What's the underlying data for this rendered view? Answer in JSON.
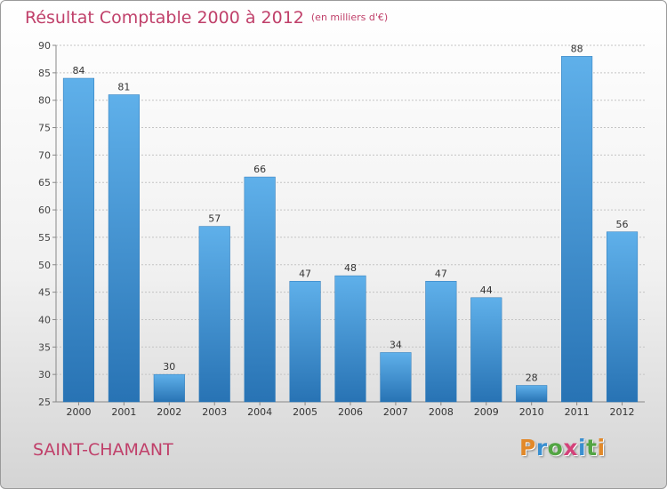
{
  "header": {
    "title": "Résultat Comptable 2000 à 2012",
    "subtitle": "(en milliers d'€)"
  },
  "footer": {
    "town": "SAINT-CHAMANT",
    "logo": {
      "letters": [
        "P",
        "r",
        "o",
        "x",
        "i",
        "t",
        "i"
      ],
      "colors": [
        "#e2892a",
        "#3a8fd0",
        "#53a544",
        "#d4427a",
        "#3a8fd0",
        "#53a544",
        "#e2892a"
      ]
    }
  },
  "chart_data": {
    "type": "bar",
    "title": "Résultat Comptable 2000 à 2012",
    "subtitle": "(en milliers d'€)",
    "categories": [
      "2000",
      "2001",
      "2002",
      "2003",
      "2004",
      "2005",
      "2006",
      "2007",
      "2008",
      "2009",
      "2010",
      "2011",
      "2012"
    ],
    "values": [
      84,
      81,
      30,
      57,
      66,
      47,
      48,
      34,
      47,
      44,
      28,
      88,
      56
    ],
    "ylim": [
      25,
      90
    ],
    "yticks": [
      25,
      30,
      35,
      40,
      45,
      50,
      55,
      60,
      65,
      70,
      75,
      80,
      85,
      90
    ],
    "grid": true,
    "bar_color": "#3a94d6",
    "bar_color_light": "#5fb0ea",
    "bar_color_dark": "#2873b4"
  }
}
